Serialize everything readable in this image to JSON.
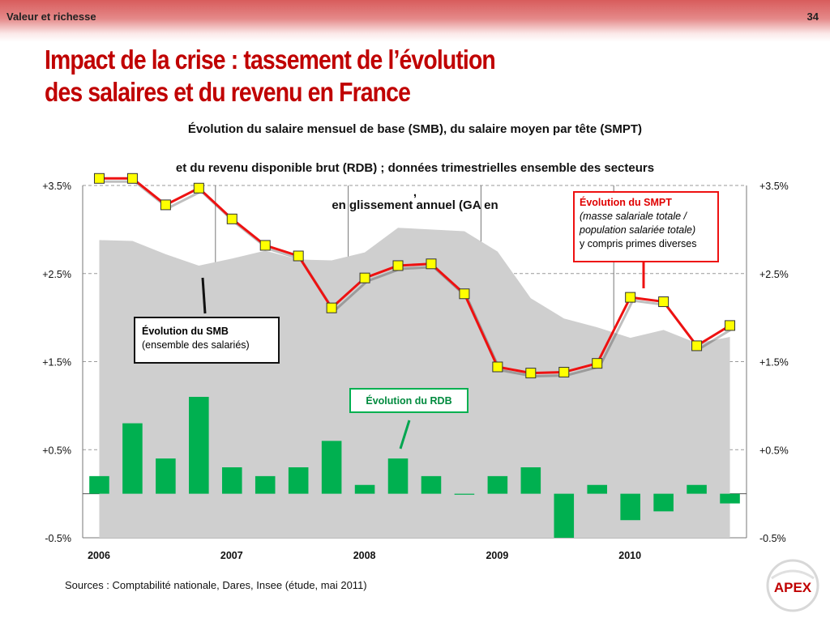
{
  "header": {
    "section": "Valeur et richesse",
    "page_number": "34"
  },
  "title": {
    "line1": "Impact de la crise : tassement de l’évolution",
    "line2": "des salaires et du revenu en France"
  },
  "subtitle": {
    "line1": "Évolution du salaire mensuel de base (SMB), du salaire moyen par tête (SMPT)",
    "line2": "et du revenu disponible brut (RDB) ; données trimestrielles ensemble des secteurs",
    "line3": ",",
    "line4": "en glissement annuel (GA en"
  },
  "annotations": {
    "smpt": {
      "title": "Évolution du SMPT",
      "line2": "(masse salariale totale /",
      "line3": "population salariée totale)",
      "line4": "y compris primes diverses"
    },
    "smb": {
      "title": "Évolution du SMB",
      "line2": "(ensemble des salariés)"
    },
    "rdb": {
      "title": "Évolution du RDB"
    }
  },
  "source": "Sources : Comptabilité nationale, Dares, Insee (étude, mai 2011)",
  "logo_text": "APEX",
  "colors": {
    "smb_area": "#cfcfcf",
    "smpt_line": "#ee1111",
    "smpt_marker": "#ffff00",
    "rdb_bar": "#00b050",
    "title": "#c00000"
  },
  "chart_data": {
    "type": "bar+line+area",
    "ylim": [
      -0.5,
      3.5
    ],
    "ytick_labels": [
      "+3.5%",
      "+2.5%",
      "+1.5%",
      "+0.5%",
      "-0.5%"
    ],
    "ytick_values": [
      3.5,
      2.5,
      1.5,
      0.5,
      -0.5
    ],
    "year_labels": [
      "2006",
      "2007",
      "2008",
      "2009",
      "2010"
    ],
    "quarters_per_year": 4,
    "quarter_count": 20,
    "grid": true,
    "series": [
      {
        "name": "Évolution du SMB",
        "type": "area",
        "values": [
          2.88,
          2.87,
          2.72,
          2.59,
          2.67,
          2.76,
          2.66,
          2.65,
          2.74,
          3.02,
          3.0,
          2.98,
          2.75,
          2.22,
          1.99,
          1.89,
          1.77,
          1.86,
          1.71,
          1.78
        ]
      },
      {
        "name": "Évolution du SMPT",
        "type": "line",
        "values": [
          3.58,
          3.58,
          3.28,
          3.47,
          3.12,
          2.82,
          2.7,
          2.11,
          2.45,
          2.59,
          2.61,
          2.27,
          1.44,
          1.37,
          1.38,
          1.48,
          2.23,
          2.18,
          1.68,
          1.91
        ]
      },
      {
        "name": "Évolution du RDB",
        "type": "bar",
        "values": [
          0.2,
          0.8,
          0.4,
          1.1,
          0.3,
          0.2,
          0.3,
          0.6,
          0.1,
          0.4,
          0.2,
          0.0,
          0.2,
          0.3,
          -0.5,
          0.1,
          -0.3,
          -0.2,
          0.1,
          -0.11
        ]
      }
    ]
  }
}
